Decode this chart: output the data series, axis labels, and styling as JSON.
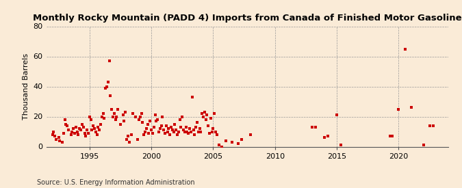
{
  "title": "Monthly Rocky Mountain (PADD 4) Imports from Canada of Finished Motor Gasoline",
  "ylabel": "Thousand Barrels",
  "source": "Source: U.S. Energy Information Administration",
  "background_color": "#faebd7",
  "plot_bg_color": "#faebd7",
  "marker_color": "#cc0000",
  "marker_size": 3.5,
  "ylim": [
    0,
    80
  ],
  "yticks": [
    0,
    20,
    40,
    60,
    80
  ],
  "xlim": [
    1991.5,
    2024
  ],
  "xtick_positions": [
    1995,
    2000,
    2005,
    2010,
    2015,
    2020
  ],
  "title_fontsize": 9.5,
  "ylabel_fontsize": 8,
  "tick_fontsize": 8,
  "source_fontsize": 7,
  "x": [
    1992.0,
    1992.1,
    1992.2,
    1992.3,
    1992.5,
    1992.6,
    1992.8,
    1992.9,
    1993.0,
    1993.1,
    1993.2,
    1993.3,
    1993.5,
    1993.6,
    1993.7,
    1993.8,
    1993.9,
    1994.0,
    1994.1,
    1994.2,
    1994.3,
    1994.4,
    1994.5,
    1994.6,
    1994.7,
    1994.8,
    1994.9,
    1995.0,
    1995.1,
    1995.2,
    1995.3,
    1995.4,
    1995.5,
    1995.6,
    1995.7,
    1995.8,
    1995.9,
    1996.0,
    1996.1,
    1996.2,
    1996.3,
    1996.4,
    1996.5,
    1996.6,
    1996.7,
    1996.8,
    1996.9,
    1997.0,
    1997.1,
    1997.2,
    1997.3,
    1997.5,
    1997.7,
    1997.8,
    1997.9,
    1998.0,
    1998.1,
    1998.2,
    1998.4,
    1998.5,
    1998.7,
    1998.9,
    1999.0,
    1999.1,
    1999.2,
    1999.3,
    1999.4,
    1999.5,
    1999.6,
    1999.7,
    1999.8,
    1999.9,
    2000.0,
    2000.1,
    2000.2,
    2000.3,
    2000.4,
    2000.5,
    2000.6,
    2000.7,
    2000.8,
    2000.9,
    2001.0,
    2001.1,
    2001.2,
    2001.3,
    2001.4,
    2001.5,
    2001.6,
    2001.7,
    2001.8,
    2001.9,
    2002.0,
    2002.1,
    2002.2,
    2002.3,
    2002.4,
    2002.5,
    2002.6,
    2002.7,
    2002.8,
    2002.9,
    2003.0,
    2003.1,
    2003.2,
    2003.3,
    2003.4,
    2003.5,
    2003.6,
    2003.7,
    2003.8,
    2003.9,
    2004.0,
    2004.1,
    2004.2,
    2004.3,
    2004.4,
    2004.5,
    2004.6,
    2004.7,
    2004.8,
    2004.9,
    2005.0,
    2005.1,
    2005.2,
    2005.3,
    2005.5,
    2005.7,
    2006.0,
    2006.5,
    2007.0,
    2007.3,
    2008.0,
    2013.0,
    2013.3,
    2014.0,
    2014.3,
    2015.0,
    2015.3,
    2019.3,
    2019.5,
    2020.0,
    2020.5,
    2021.0,
    2022.0,
    2022.5,
    2022.8
  ],
  "y": [
    8,
    10,
    7,
    5,
    6,
    4,
    3,
    9,
    18,
    15,
    14,
    11,
    8,
    10,
    12,
    9,
    13,
    10,
    8,
    12,
    11,
    15,
    13,
    9,
    7,
    11,
    9,
    20,
    18,
    11,
    14,
    12,
    10,
    8,
    13,
    11,
    15,
    20,
    22,
    19,
    39,
    40,
    43,
    57,
    34,
    25,
    20,
    22,
    18,
    20,
    25,
    15,
    21,
    17,
    23,
    5,
    7,
    3,
    8,
    22,
    20,
    5,
    18,
    20,
    22,
    16,
    8,
    10,
    12,
    15,
    9,
    17,
    11,
    9,
    13,
    21,
    17,
    18,
    10,
    12,
    14,
    20,
    11,
    9,
    14,
    10,
    12,
    8,
    13,
    11,
    10,
    15,
    11,
    8,
    10,
    18,
    13,
    20,
    11,
    10,
    13,
    10,
    9,
    12,
    10,
    33,
    11,
    8,
    13,
    16,
    10,
    12,
    10,
    22,
    20,
    23,
    18,
    21,
    14,
    9,
    19,
    10,
    12,
    22,
    10,
    8,
    1,
    0,
    4,
    3,
    2,
    5,
    8,
    13,
    13,
    6,
    7,
    21,
    1,
    7,
    7,
    25,
    65,
    26,
    1,
    14,
    14
  ]
}
